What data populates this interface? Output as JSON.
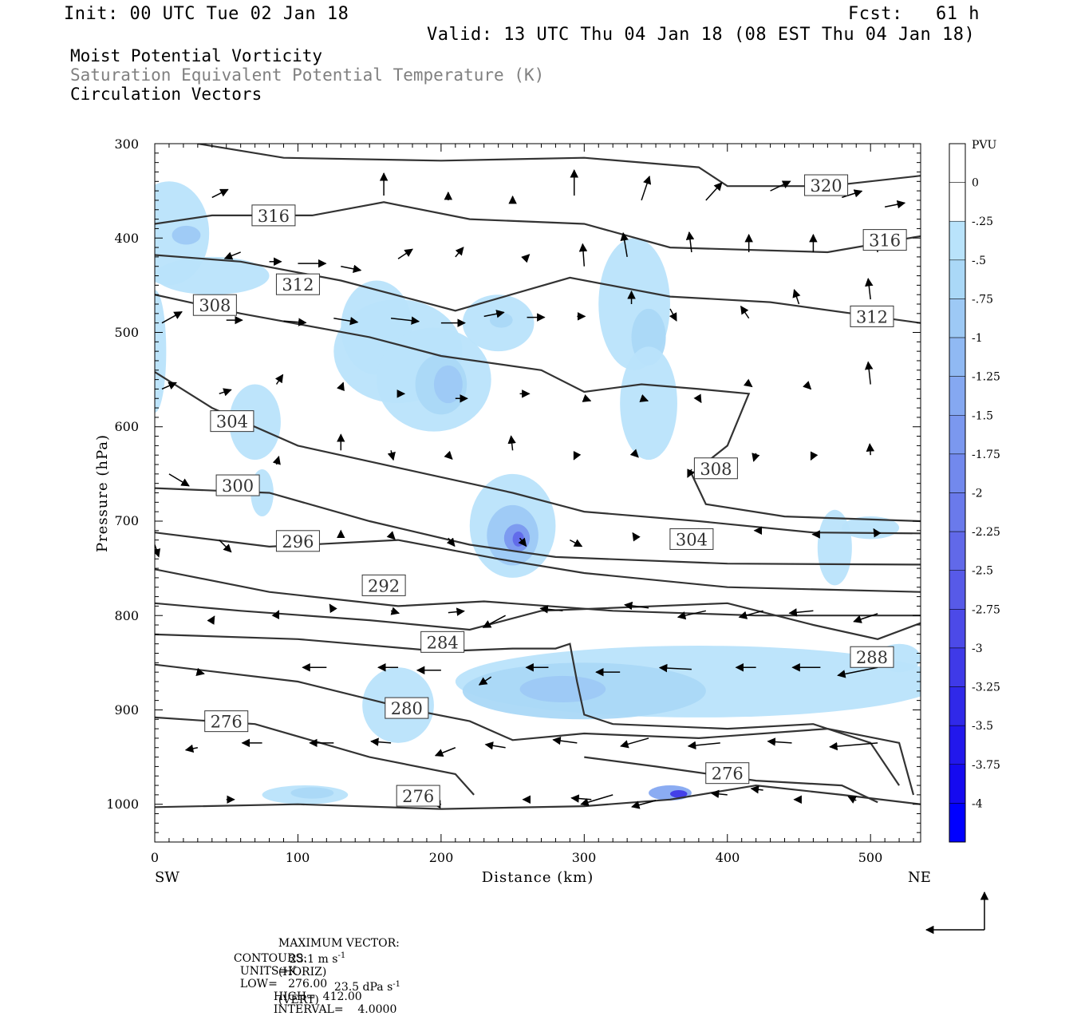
{
  "header": {
    "init": "Init: 00 UTC Tue 02 Jan 18",
    "fcst": "Fcst:   61 h",
    "valid": "Valid: 13 UTC Thu 04 Jan 18 (08 EST Thu 04 Jan 18)"
  },
  "legend_lines": {
    "line1": "Moist Potential Vorticity",
    "line2": "Saturation Equivalent Potential Temperature (K)",
    "line3": "Circulation Vectors"
  },
  "colors": {
    "line1": "#000000",
    "line2": "#808080",
    "line3": "#000000",
    "contour": "#333333"
  },
  "axes": {
    "ylabel": "Pressure (hPa)",
    "xlabel": "Distance (km)",
    "left_end": "SW",
    "right_end": "NE"
  },
  "chart_data": {
    "type": "cross-section contour",
    "x_range": [
      0,
      535
    ],
    "y_range": [
      300,
      1040
    ],
    "y_ticks": [
      "300",
      "400",
      "500",
      "600",
      "700",
      "800",
      "900",
      "1000"
    ],
    "x_ticks": [
      "0",
      "100",
      "200",
      "300",
      "400",
      "500"
    ],
    "colorbar": {
      "unit": "PVU",
      "labels": [
        "0",
        "-.25",
        "-.5",
        "-.75",
        "-1",
        "-1.25",
        "-1.5",
        "-1.75",
        "-2",
        "-2.25",
        "-2.5",
        "-2.75",
        "-3",
        "-3.25",
        "-3.5",
        "-3.75",
        "-4"
      ],
      "colors": [
        "#ffffff",
        "#b9e3fb",
        "#aad8f7",
        "#9dc9f5",
        "#90b9f3",
        "#85a8f1",
        "#7b98ef",
        "#7289ed",
        "#6a7aeb",
        "#6169e9",
        "#575ae8",
        "#4c4ae8",
        "#3f3ae8",
        "#3029e9",
        "#2218ec",
        "#150af0",
        "#0000ff"
      ]
    },
    "contour_labels": [
      {
        "text": "320",
        "x": 469,
        "p": 344
      },
      {
        "text": "316",
        "x": 83,
        "p": 376
      },
      {
        "text": "316",
        "x": 510,
        "p": 402
      },
      {
        "text": "312",
        "x": 100,
        "p": 449
      },
      {
        "text": "312",
        "x": 501,
        "p": 483
      },
      {
        "text": "308",
        "x": 42,
        "p": 471
      },
      {
        "text": "308",
        "x": 392,
        "p": 644
      },
      {
        "text": "304",
        "x": 54,
        "p": 594
      },
      {
        "text": "304",
        "x": 375,
        "p": 719
      },
      {
        "text": "300",
        "x": 58,
        "p": 662
      },
      {
        "text": "296",
        "x": 100,
        "p": 721
      },
      {
        "text": "292",
        "x": 160,
        "p": 768
      },
      {
        "text": "288",
        "x": 501,
        "p": 844
      },
      {
        "text": "284",
        "x": 201,
        "p": 828
      },
      {
        "text": "280",
        "x": 176,
        "p": 898
      },
      {
        "text": "276",
        "x": 50,
        "p": 912
      },
      {
        "text": "276",
        "x": 184,
        "p": 991
      },
      {
        "text": "276",
        "x": 400,
        "p": 967
      }
    ],
    "max_vector": {
      "label": "MAXIMUM VECTOR:",
      "horiz": "23.1 m s",
      "horiz_unit": "(HORIZ)",
      "vert": "23.5 dPa s",
      "vert_unit": "(VERT)",
      "exp": "-1"
    },
    "contours_info": {
      "label": "CONTOURS:",
      "units": "UNITS=K",
      "low": "LOW=   276.00",
      "high": "HIGH=  412.00",
      "interval": "INTERVAL=    4.0000"
    }
  }
}
